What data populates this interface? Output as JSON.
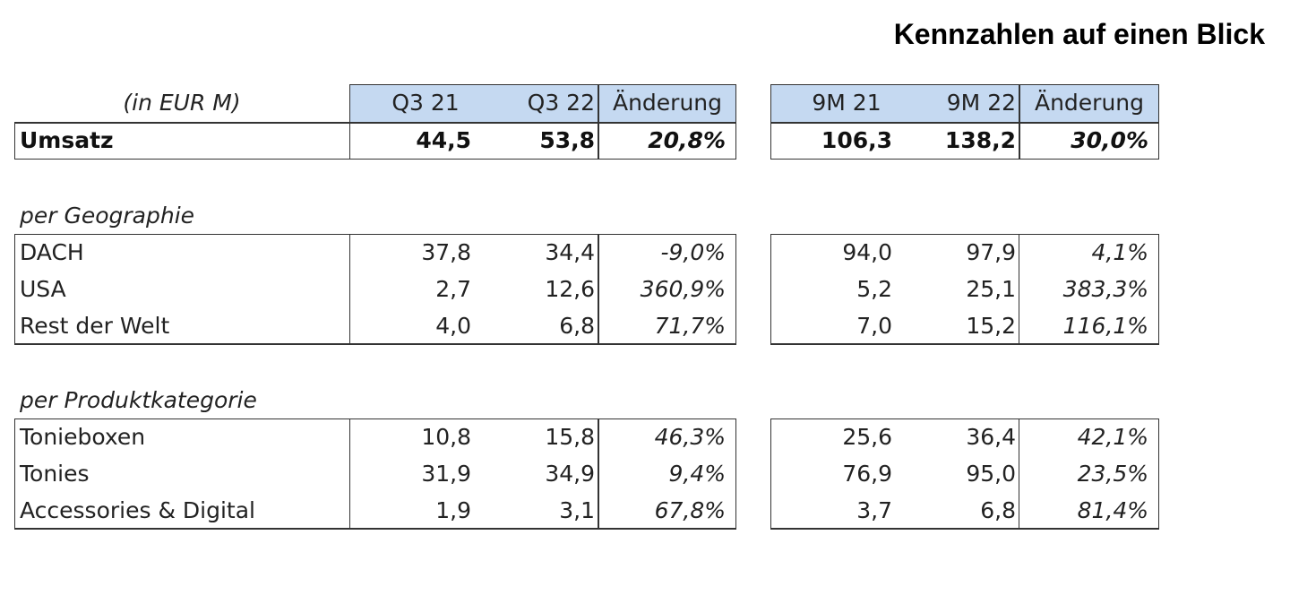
{
  "title": "Kennzahlen auf einen Blick",
  "colors": {
    "header_fill": "#c5d9f1",
    "border": "#333333",
    "text": "#222222"
  },
  "unit_label": "(in EUR M)",
  "columns": {
    "q3_21": "Q3 21",
    "q3_22": "Q3 22",
    "q_change": "Änderung",
    "m9_21": "9M 21",
    "m9_22": "9M 22",
    "m9_change": "Änderung"
  },
  "umsatz": {
    "label": "Umsatz",
    "q3_21": "44,5",
    "q3_22": "53,8",
    "q_change": "20,8%",
    "m9_21": "106,3",
    "m9_22": "138,2",
    "m9_change": "30,0%"
  },
  "geography": {
    "heading": "per Geographie",
    "rows": [
      {
        "label": "DACH",
        "q3_21": "37,8",
        "q3_22": "34,4",
        "q_change": "-9,0%",
        "m9_21": "94,0",
        "m9_22": "97,9",
        "m9_change": "4,1%"
      },
      {
        "label": "USA",
        "q3_21": "2,7",
        "q3_22": "12,6",
        "q_change": "360,9%",
        "m9_21": "5,2",
        "m9_22": "25,1",
        "m9_change": "383,3%"
      },
      {
        "label": "Rest der Welt",
        "q3_21": "4,0",
        "q3_22": "6,8",
        "q_change": "71,7%",
        "m9_21": "7,0",
        "m9_22": "15,2",
        "m9_change": "116,1%"
      }
    ]
  },
  "products": {
    "heading": "per Produktkategorie",
    "rows": [
      {
        "label": "Tonieboxen",
        "q3_21": "10,8",
        "q3_22": "15,8",
        "q_change": "46,3%",
        "m9_21": "25,6",
        "m9_22": "36,4",
        "m9_change": "42,1%"
      },
      {
        "label": "Tonies",
        "q3_21": "31,9",
        "q3_22": "34,9",
        "q_change": "9,4%",
        "m9_21": "76,9",
        "m9_22": "95,0",
        "m9_change": "23,5%"
      },
      {
        "label": "Accessories & Digital",
        "q3_21": "1,9",
        "q3_22": "3,1",
        "q_change": "67,8%",
        "m9_21": "3,7",
        "m9_22": "6,8",
        "m9_change": "81,4%"
      }
    ]
  }
}
